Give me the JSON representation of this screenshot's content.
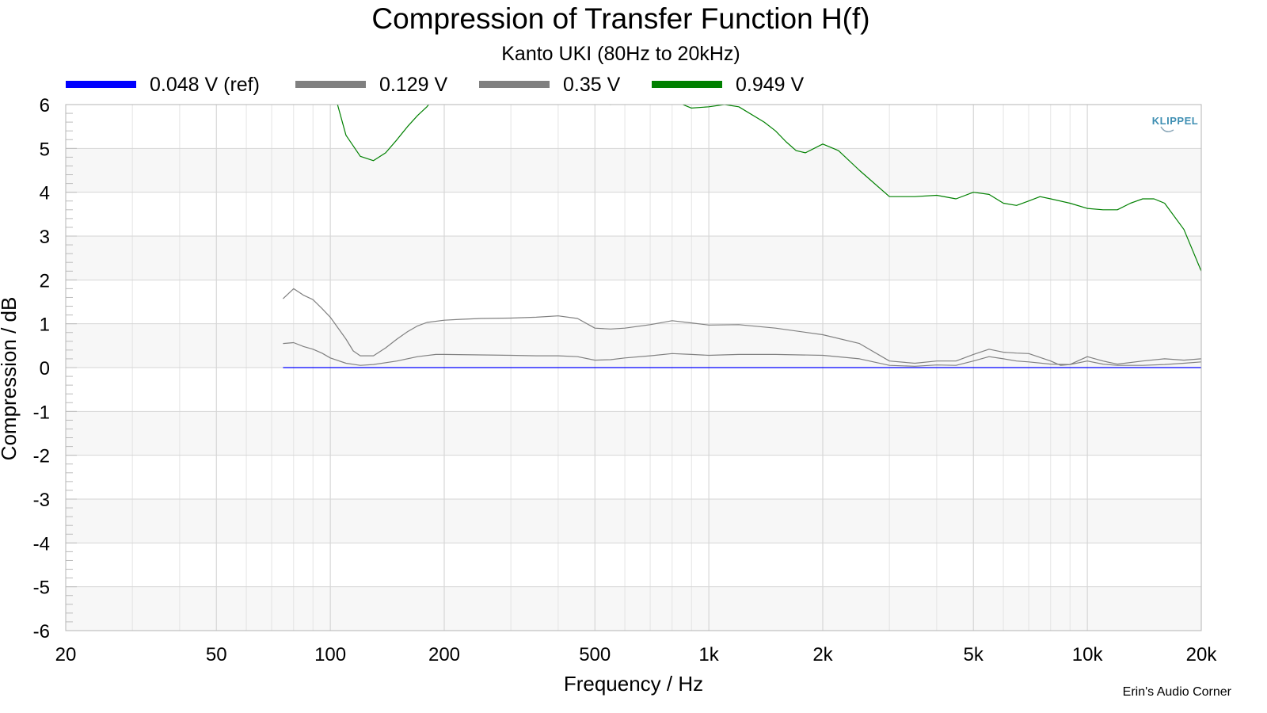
{
  "chart_data": {
    "type": "line",
    "title": "Compression of Transfer Function H(f)",
    "subtitle": "Kanto UKI (80Hz to 20kHz)",
    "xlabel": "Frequency / Hz",
    "ylabel": "Compression / dB",
    "x_scale": "log",
    "xlim": [
      20,
      20000
    ],
    "ylim": [
      -6,
      6
    ],
    "x_ticks": [
      20,
      50,
      100,
      200,
      500,
      1000,
      2000,
      5000,
      10000,
      20000
    ],
    "x_tick_labels": [
      "20",
      "50",
      "100",
      "200",
      "500",
      "1k",
      "2k",
      "5k",
      "10k",
      "20k"
    ],
    "y_ticks": [
      -6,
      -5,
      -4,
      -3,
      -2,
      -1,
      0,
      1,
      2,
      3,
      4,
      5,
      6
    ],
    "y_tick_labels": [
      "-6",
      "-5",
      "-4",
      "-3",
      "-2",
      "-1",
      "0",
      "1",
      "2",
      "3",
      "4",
      "5",
      "6"
    ],
    "grid": true,
    "legend_position": "top",
    "series": [
      {
        "name": "0.048 V (ref)",
        "color": "#0000ff",
        "points": [
          [
            75,
            0
          ],
          [
            20000,
            0
          ]
        ]
      },
      {
        "name": "0.129 V",
        "color": "#808080",
        "points": [
          [
            75,
            0.55
          ],
          [
            80,
            0.57
          ],
          [
            85,
            0.48
          ],
          [
            90,
            0.42
          ],
          [
            95,
            0.33
          ],
          [
            100,
            0.22
          ],
          [
            110,
            0.1
          ],
          [
            120,
            0.05
          ],
          [
            130,
            0.07
          ],
          [
            150,
            0.15
          ],
          [
            170,
            0.25
          ],
          [
            190,
            0.3
          ],
          [
            200,
            0.3
          ],
          [
            250,
            0.29
          ],
          [
            300,
            0.28
          ],
          [
            350,
            0.27
          ],
          [
            400,
            0.27
          ],
          [
            450,
            0.25
          ],
          [
            500,
            0.17
          ],
          [
            550,
            0.18
          ],
          [
            600,
            0.22
          ],
          [
            700,
            0.27
          ],
          [
            800,
            0.32
          ],
          [
            900,
            0.3
          ],
          [
            1000,
            0.28
          ],
          [
            1200,
            0.3
          ],
          [
            1500,
            0.3
          ],
          [
            2000,
            0.28
          ],
          [
            2500,
            0.2
          ],
          [
            3000,
            0.05
          ],
          [
            3500,
            0.03
          ],
          [
            4000,
            0.06
          ],
          [
            4500,
            0.05
          ],
          [
            5000,
            0.15
          ],
          [
            5500,
            0.25
          ],
          [
            6000,
            0.2
          ],
          [
            6500,
            0.15
          ],
          [
            7000,
            0.13
          ],
          [
            8000,
            0.08
          ],
          [
            9000,
            0.07
          ],
          [
            10000,
            0.15
          ],
          [
            11000,
            0.08
          ],
          [
            12000,
            0.05
          ],
          [
            14000,
            0.05
          ],
          [
            16000,
            0.07
          ],
          [
            18000,
            0.1
          ],
          [
            20000,
            0.13
          ]
        ]
      },
      {
        "name": "0.35 V",
        "color": "#808080",
        "points": [
          [
            75,
            1.57
          ],
          [
            80,
            1.8
          ],
          [
            85,
            1.65
          ],
          [
            90,
            1.55
          ],
          [
            95,
            1.35
          ],
          [
            100,
            1.15
          ],
          [
            110,
            0.65
          ],
          [
            115,
            0.38
          ],
          [
            120,
            0.27
          ],
          [
            130,
            0.27
          ],
          [
            140,
            0.45
          ],
          [
            150,
            0.65
          ],
          [
            160,
            0.82
          ],
          [
            170,
            0.95
          ],
          [
            180,
            1.03
          ],
          [
            200,
            1.08
          ],
          [
            220,
            1.1
          ],
          [
            250,
            1.12
          ],
          [
            300,
            1.13
          ],
          [
            350,
            1.15
          ],
          [
            400,
            1.18
          ],
          [
            450,
            1.12
          ],
          [
            500,
            0.9
          ],
          [
            550,
            0.88
          ],
          [
            600,
            0.9
          ],
          [
            700,
            0.98
          ],
          [
            800,
            1.07
          ],
          [
            900,
            1.02
          ],
          [
            1000,
            0.97
          ],
          [
            1200,
            0.98
          ],
          [
            1500,
            0.9
          ],
          [
            2000,
            0.75
          ],
          [
            2500,
            0.55
          ],
          [
            3000,
            0.15
          ],
          [
            3500,
            0.1
          ],
          [
            4000,
            0.15
          ],
          [
            4500,
            0.15
          ],
          [
            5000,
            0.3
          ],
          [
            5500,
            0.42
          ],
          [
            6000,
            0.35
          ],
          [
            6500,
            0.33
          ],
          [
            7000,
            0.32
          ],
          [
            8000,
            0.15
          ],
          [
            8500,
            0.05
          ],
          [
            9000,
            0.07
          ],
          [
            10000,
            0.25
          ],
          [
            11000,
            0.15
          ],
          [
            12000,
            0.08
          ],
          [
            14000,
            0.15
          ],
          [
            16000,
            0.2
          ],
          [
            18000,
            0.17
          ],
          [
            20000,
            0.2
          ]
        ]
      },
      {
        "name": "0.949 V",
        "color": "#008000",
        "points": [
          [
            100,
            6.6
          ],
          [
            110,
            5.3
          ],
          [
            120,
            4.82
          ],
          [
            130,
            4.72
          ],
          [
            140,
            4.9
          ],
          [
            150,
            5.2
          ],
          [
            160,
            5.5
          ],
          [
            170,
            5.75
          ],
          [
            180,
            5.95
          ],
          [
            190,
            6.2
          ],
          [
            500,
            6.05
          ],
          [
            550,
            6.0
          ],
          [
            600,
            6.2
          ],
          [
            700,
            6.4
          ],
          [
            800,
            6.1
          ],
          [
            900,
            5.92
          ],
          [
            1000,
            5.95
          ],
          [
            1100,
            6.0
          ],
          [
            1200,
            5.95
          ],
          [
            1400,
            5.6
          ],
          [
            1500,
            5.4
          ],
          [
            1600,
            5.15
          ],
          [
            1700,
            4.95
          ],
          [
            1800,
            4.9
          ],
          [
            2000,
            5.1
          ],
          [
            2200,
            4.95
          ],
          [
            2500,
            4.5
          ],
          [
            3000,
            3.9
          ],
          [
            3500,
            3.9
          ],
          [
            4000,
            3.93
          ],
          [
            4500,
            3.85
          ],
          [
            5000,
            4.0
          ],
          [
            5500,
            3.95
          ],
          [
            6000,
            3.75
          ],
          [
            6500,
            3.7
          ],
          [
            7000,
            3.8
          ],
          [
            7500,
            3.9
          ],
          [
            8000,
            3.85
          ],
          [
            9000,
            3.75
          ],
          [
            10000,
            3.63
          ],
          [
            11000,
            3.6
          ],
          [
            12000,
            3.6
          ],
          [
            13000,
            3.75
          ],
          [
            14000,
            3.85
          ],
          [
            15000,
            3.85
          ],
          [
            16000,
            3.75
          ],
          [
            18000,
            3.15
          ],
          [
            20000,
            2.2
          ]
        ]
      }
    ]
  },
  "watermark": "KLIPPEL",
  "credit": "Erin's Audio Corner"
}
